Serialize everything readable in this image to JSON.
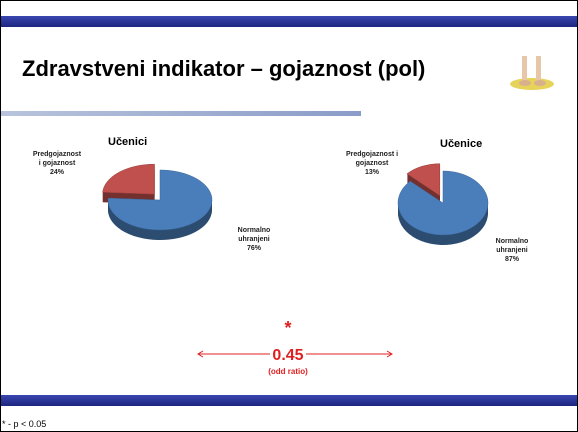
{
  "slide": {
    "title": "Zdravstveni indikator – gojaznost (pol)",
    "star": "*",
    "odds_value": "0.45",
    "odds_label": "(odd ratio)",
    "footnote": "* - p < 0.05"
  },
  "chart_data": [
    {
      "type": "pie",
      "title": "Učenici",
      "categories": [
        "Normalno uhranjeni",
        "Predgojaznost i gojaznost"
      ],
      "values": [
        76,
        24
      ],
      "value_labels": [
        "76%",
        "24%"
      ],
      "colors": [
        "#4a7ebb",
        "#c0504d"
      ]
    },
    {
      "type": "pie",
      "title": "Učenice",
      "categories": [
        "Normalno uhranjeni",
        "Predgojaznost i gojaznost"
      ],
      "values": [
        87,
        13
      ],
      "value_labels": [
        "87%",
        "13%"
      ],
      "colors": [
        "#4a7ebb",
        "#c0504d"
      ]
    }
  ]
}
